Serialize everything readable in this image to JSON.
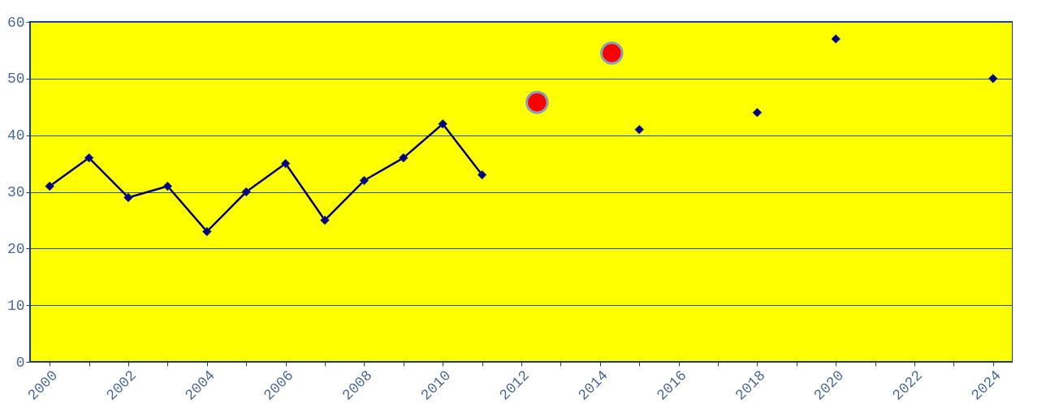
{
  "chart_data": {
    "type": "line",
    "xlim": [
      1999.5,
      2024.5
    ],
    "ylim": [
      0,
      60
    ],
    "xticks": [
      2000,
      {
        "value": 2001,
        "label": null
      },
      2002,
      {
        "value": 2003,
        "label": null
      },
      2004,
      {
        "value": 2005,
        "label": null
      },
      2006,
      {
        "value": 2007,
        "label": null
      },
      2008,
      {
        "value": 2009,
        "label": null
      },
      2010,
      {
        "value": 2011,
        "label": null
      },
      2012,
      {
        "value": 2013,
        "label": null
      },
      2014,
      {
        "value": 2015,
        "label": null
      },
      2016,
      {
        "value": 2017,
        "label": null
      },
      2018,
      {
        "value": 2019,
        "label": null
      },
      2020,
      {
        "value": 2021,
        "label": null
      },
      2022,
      {
        "value": 2023,
        "label": null
      },
      2024
    ],
    "yticks": [
      0,
      10,
      20,
      30,
      40,
      50,
      60
    ],
    "grid": "y",
    "legend": false,
    "series": [
      {
        "marker": "diamond",
        "color": "#000080",
        "x": [
          2000,
          2001,
          2002,
          2003,
          2004,
          2005,
          2006,
          2007,
          2008,
          2009,
          2010,
          2011
        ],
        "values": [
          31,
          36,
          29,
          31,
          23,
          30,
          35,
          25,
          32,
          36,
          42,
          33
        ]
      },
      {
        "type": "scatter",
        "marker": "diamond",
        "color": "#000080",
        "x": [
          2015,
          2018,
          2020,
          2024
        ],
        "values": [
          41,
          44,
          57,
          50
        ]
      },
      {
        "type": "scatter",
        "marker": "circle",
        "color": "#ff0000",
        "x": [
          2012.4,
          2014.3
        ],
        "values": [
          45.8,
          54.5
        ]
      }
    ]
  }
}
